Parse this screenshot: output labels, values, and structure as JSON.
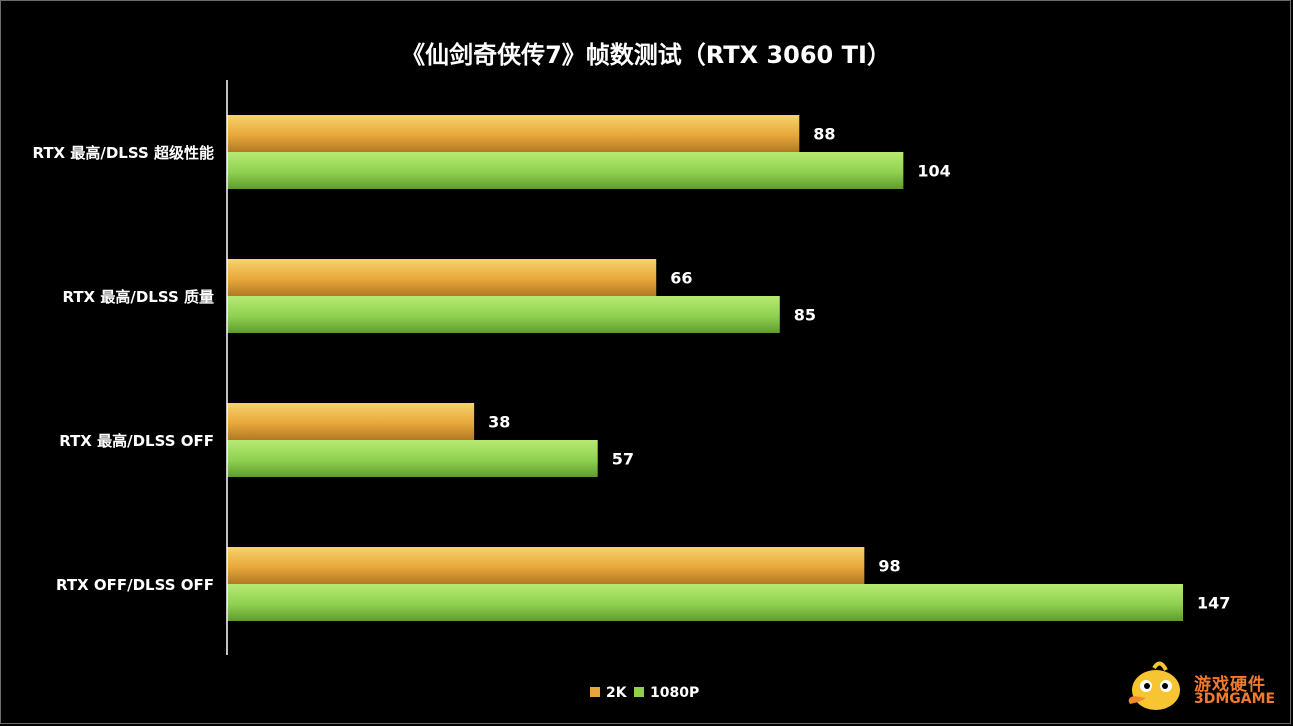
{
  "chart_data": {
    "type": "bar",
    "orientation": "horizontal",
    "title": "《仙剑奇侠传7》帧数测试（RTX 3060 TI）",
    "categories": [
      "RTX 最高/DLSS 超级性能",
      "RTX 最高/DLSS 质量",
      "RTX 最高/DLSS OFF",
      "RTX OFF/DLSS OFF"
    ],
    "series": [
      {
        "name": "2K",
        "values": [
          88,
          66,
          38,
          98
        ],
        "color": "#e8a73a"
      },
      {
        "name": "1080P",
        "values": [
          104,
          85,
          57,
          147
        ],
        "color": "#8fd14f"
      }
    ],
    "xlim": [
      0,
      160
    ],
    "grid": false,
    "legend": "bottom-center"
  },
  "watermark": {
    "line1": "游戏硬件",
    "line2": "3DMGAME",
    "icon": "duck-mascot-icon"
  }
}
